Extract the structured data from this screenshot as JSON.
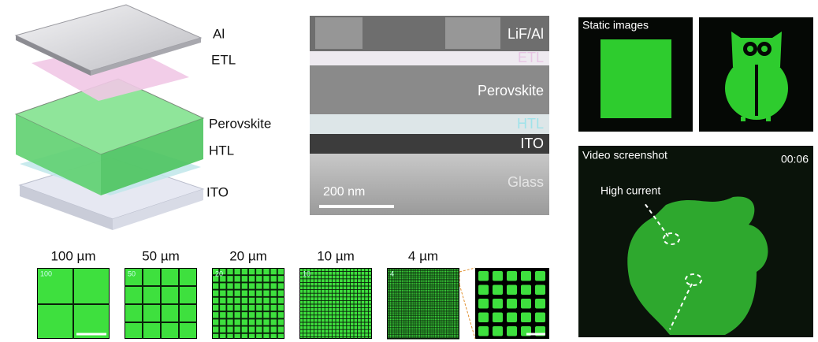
{
  "stack": {
    "layers": [
      "Al",
      "ETL",
      "Perovskite",
      "HTL",
      "ITO"
    ]
  },
  "cross_section": {
    "layers": [
      "LiF/Al",
      "ETL",
      "Perovskite",
      "HTL",
      "ITO",
      "Glass"
    ],
    "scale_bar": "200 nm"
  },
  "pixel_arrays": [
    {
      "size": "100 µm",
      "label": 100
    },
    {
      "size": "50 µm",
      "label": 50
    },
    {
      "size": "20 µm",
      "label": 20
    },
    {
      "size": "10 µm",
      "label": 10
    },
    {
      "size": "4 µm",
      "label": 4
    }
  ],
  "static": {
    "title": "Static images"
  },
  "video": {
    "title": "Video screenshot",
    "time": "00:06",
    "annotation": "High current"
  }
}
